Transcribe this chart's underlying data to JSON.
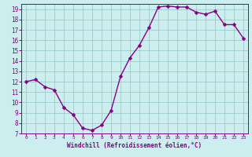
{
  "x": [
    0,
    1,
    2,
    3,
    4,
    5,
    6,
    7,
    8,
    9,
    10,
    11,
    12,
    13,
    14,
    15,
    16,
    17,
    18,
    19,
    20,
    21,
    22,
    23
  ],
  "y": [
    12.0,
    12.2,
    11.5,
    11.2,
    9.5,
    8.8,
    7.5,
    7.3,
    7.8,
    9.2,
    12.5,
    14.3,
    15.5,
    17.2,
    19.2,
    19.3,
    19.2,
    19.2,
    18.7,
    18.5,
    18.8,
    17.5,
    17.5,
    16.2
  ],
  "line_color": "#880088",
  "marker_color": "#880088",
  "bg_color": "#cceeee",
  "grid_color": "#99cccc",
  "axis_label_color": "#880088",
  "tick_color": "#880088",
  "xlabel": "Windchill (Refroidissement éolien,°C)",
  "ylim": [
    7,
    19.5
  ],
  "xlim": [
    -0.5,
    23.5
  ],
  "yticks": [
    7,
    8,
    9,
    10,
    11,
    12,
    13,
    14,
    15,
    16,
    17,
    18,
    19
  ],
  "xticks": [
    0,
    1,
    2,
    3,
    4,
    5,
    6,
    7,
    8,
    9,
    10,
    11,
    12,
    13,
    14,
    15,
    16,
    17,
    18,
    19,
    20,
    21,
    22,
    23
  ],
  "marker_size": 2.5,
  "line_width": 1.0
}
